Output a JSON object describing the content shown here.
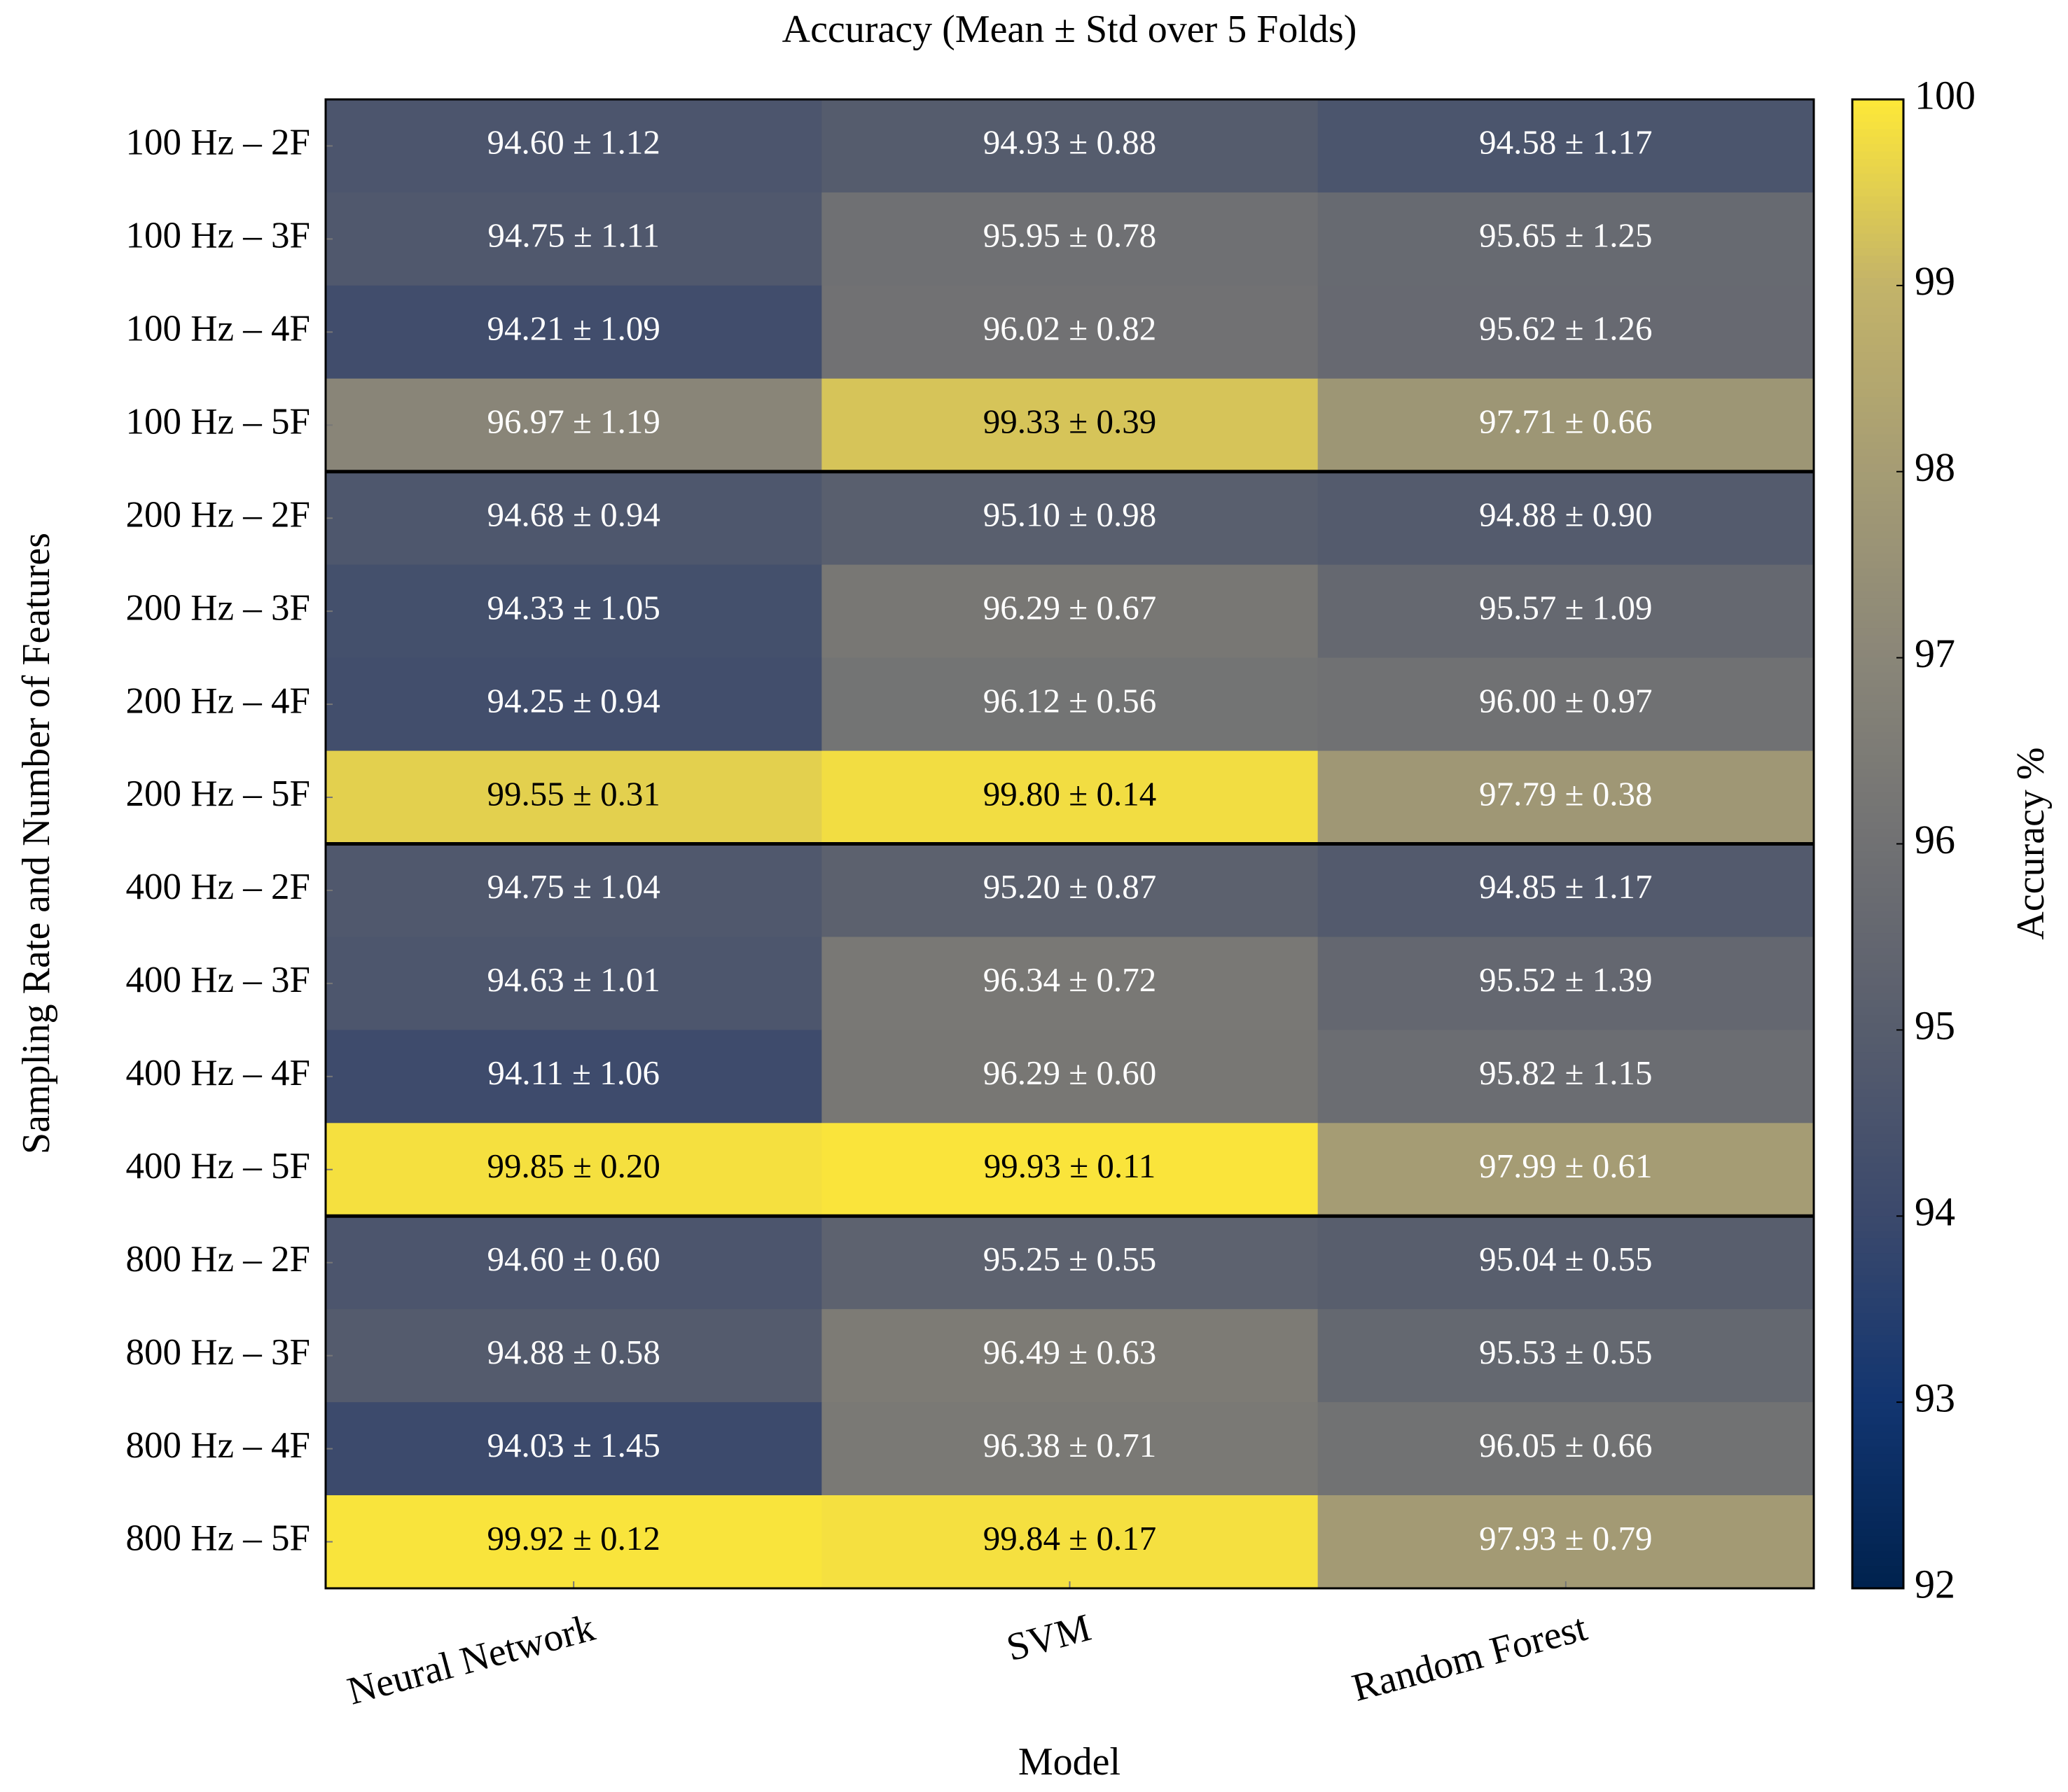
{
  "chart_data": {
    "type": "heatmap",
    "title": "Accuracy (Mean ± Std over 5 Folds)",
    "x_label": "Model",
    "y_label": "Sampling Rate and Number of Features",
    "colorbar_label": "Accuracy %",
    "colormap": "cividis",
    "categories": [
      "Neural Network",
      "SVM",
      "Random Forest"
    ],
    "rows": [
      "100 Hz – 2F",
      "100 Hz – 3F",
      "100 Hz – 4F",
      "100 Hz – 5F",
      "200 Hz – 2F",
      "200 Hz – 3F",
      "200 Hz – 4F",
      "200 Hz – 5F",
      "400 Hz – 2F",
      "400 Hz – 3F",
      "400 Hz – 4F",
      "400 Hz – 5F",
      "800 Hz – 2F",
      "800 Hz – 3F",
      "800 Hz – 4F",
      "800 Hz – 5F"
    ],
    "values": [
      [
        94.6,
        94.93,
        94.58
      ],
      [
        94.75,
        95.95,
        95.65
      ],
      [
        94.21,
        96.02,
        95.62
      ],
      [
        96.97,
        99.33,
        97.71
      ],
      [
        94.68,
        95.1,
        94.88
      ],
      [
        94.33,
        96.29,
        95.57
      ],
      [
        94.25,
        96.12,
        96.0
      ],
      [
        99.55,
        99.8,
        97.79
      ],
      [
        94.75,
        95.2,
        94.85
      ],
      [
        94.63,
        96.34,
        95.52
      ],
      [
        94.11,
        96.29,
        95.82
      ],
      [
        99.85,
        99.93,
        97.99
      ],
      [
        94.6,
        95.25,
        95.04
      ],
      [
        94.88,
        96.49,
        95.53
      ],
      [
        94.03,
        96.38,
        96.05
      ],
      [
        99.92,
        99.84,
        97.93
      ]
    ],
    "value_labels": [
      [
        "94.60 ± 1.12",
        "94.93 ± 0.88",
        "94.58 ± 1.17"
      ],
      [
        "94.75 ± 1.11",
        "95.95 ± 0.78",
        "95.65 ± 1.25"
      ],
      [
        "94.21 ± 1.09",
        "96.02 ± 0.82",
        "95.62 ± 1.26"
      ],
      [
        "96.97 ± 1.19",
        "99.33 ± 0.39",
        "97.71 ± 0.66"
      ],
      [
        "94.68 ± 0.94",
        "95.10 ± 0.98",
        "94.88 ± 0.90"
      ],
      [
        "94.33 ± 1.05",
        "96.29 ± 0.67",
        "95.57 ± 1.09"
      ],
      [
        "94.25 ± 0.94",
        "96.12 ± 0.56",
        "96.00 ± 0.97"
      ],
      [
        "99.55 ± 0.31",
        "99.80 ± 0.14",
        "97.79 ± 0.38"
      ],
      [
        "94.75 ± 1.04",
        "95.20 ± 0.87",
        "94.85 ± 1.17"
      ],
      [
        "94.63 ± 1.01",
        "96.34 ± 0.72",
        "95.52 ± 1.39"
      ],
      [
        "94.11 ± 1.06",
        "96.29 ± 0.60",
        "95.82 ± 1.15"
      ],
      [
        "99.85 ± 0.20",
        "99.93 ± 0.11",
        "97.99 ± 0.61"
      ],
      [
        "94.60 ± 0.60",
        "95.25 ± 0.55",
        "95.04 ± 0.55"
      ],
      [
        "94.88 ± 0.58",
        "96.49 ± 0.63",
        "95.53 ± 0.55"
      ],
      [
        "94.03 ± 1.45",
        "96.38 ± 0.71",
        "96.05 ± 0.66"
      ],
      [
        "99.92 ± 0.12",
        "99.84 ± 0.17",
        "97.93 ± 0.79"
      ]
    ],
    "zlim": [
      92,
      100
    ],
    "zticks": [
      92,
      93,
      94,
      95,
      96,
      97,
      98,
      99,
      100
    ]
  }
}
